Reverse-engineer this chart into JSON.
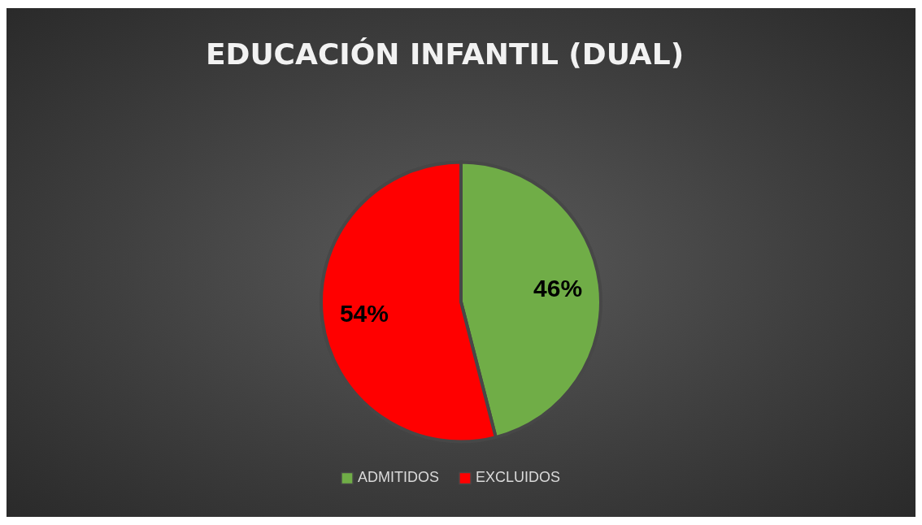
{
  "chart_data": {
    "type": "pie",
    "title": "EDUCACIÓN INFANTIL (DUAL)",
    "categories": [
      "ADMITIDOS",
      "EXCLUIDOS"
    ],
    "values": [
      46,
      54
    ],
    "colors": [
      "#70ad47",
      "#ff0000"
    ],
    "value_labels": [
      "46%",
      "54%"
    ],
    "legend": "bottom"
  }
}
